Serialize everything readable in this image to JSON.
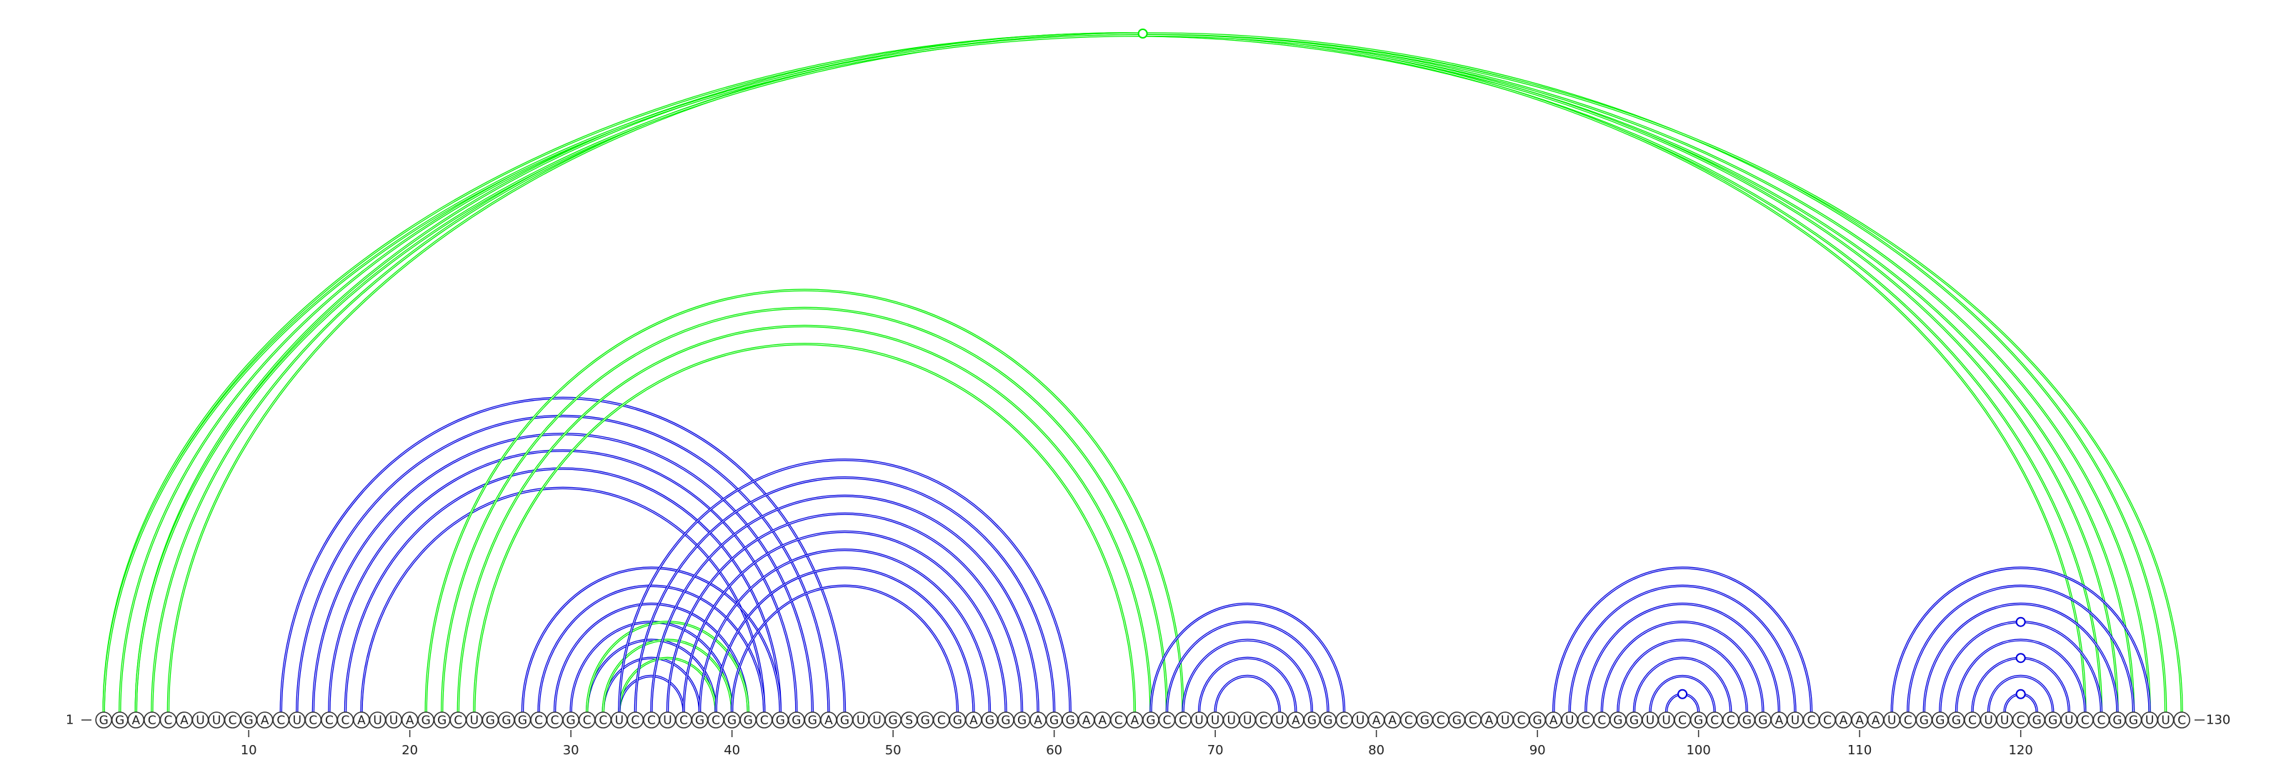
{
  "sequence": "GGACCAUUCGACUCCCAUUAGGCUGGGCCGCCUCCUCGCGGCGGGAGUUGSGCGAGGGAGGAACAGCCUUUUCUAGGCUAACGCGCAUCGAUCCGGUUCGCCGGAUCCAAAUCGGGCUUCGGUCCGGUUC",
  "start_label": "1",
  "end_label": "130",
  "ticks": [
    10,
    20,
    30,
    40,
    50,
    60,
    70,
    80,
    90,
    100,
    110,
    120
  ],
  "colors": {
    "nested": "#0000dd",
    "pseudoknot": "#00ee00"
  },
  "helices": [
    {
      "color": "pseudoknot",
      "pairs": [
        [
          1,
          128
        ],
        [
          2,
          127
        ],
        [
          3,
          126
        ],
        [
          4,
          125
        ],
        [
          5,
          124
        ]
      ]
    },
    {
      "color": "pseudoknot",
      "pairs": [
        [
          3,
          129
        ],
        [
          1,
          130
        ]
      ]
    },
    {
      "color": "nested",
      "pairs": [
        [
          12,
          47
        ],
        [
          13,
          46
        ],
        [
          14,
          45
        ],
        [
          15,
          44
        ],
        [
          16,
          43
        ],
        [
          17,
          42
        ]
      ]
    },
    {
      "color": "pseudoknot",
      "pairs": [
        [
          21,
          68
        ],
        [
          22,
          67
        ],
        [
          23,
          66
        ],
        [
          24,
          65
        ]
      ]
    },
    {
      "color": "nested",
      "pairs": [
        [
          27,
          43
        ],
        [
          28,
          42
        ],
        [
          29,
          41
        ],
        [
          30,
          40
        ],
        [
          31,
          39
        ],
        [
          32,
          38
        ],
        [
          33,
          37
        ]
      ]
    },
    {
      "color": "pseudoknot",
      "pairs": [
        [
          31,
          41
        ],
        [
          32,
          40
        ],
        [
          33,
          39
        ]
      ]
    },
    {
      "color": "nested",
      "pairs": [
        [
          33,
          61
        ],
        [
          34,
          60
        ],
        [
          35,
          59
        ],
        [
          36,
          58
        ],
        [
          37,
          57
        ],
        [
          38,
          56
        ],
        [
          39,
          55
        ],
        [
          40,
          54
        ]
      ]
    },
    {
      "color": "nested",
      "pairs": [
        [
          66,
          78
        ],
        [
          67,
          77
        ],
        [
          68,
          76
        ],
        [
          69,
          75
        ],
        [
          70,
          74
        ]
      ]
    },
    {
      "color": "nested",
      "pairs": [
        [
          91,
          107
        ],
        [
          92,
          106
        ],
        [
          93,
          105
        ],
        [
          94,
          104
        ],
        [
          95,
          103
        ],
        [
          96,
          102
        ],
        [
          97,
          101
        ],
        [
          98,
          100
        ]
      ]
    },
    {
      "color": "nested",
      "pairs": [
        [
          112,
          128
        ],
        [
          113,
          127
        ],
        [
          114,
          126
        ],
        [
          115,
          125
        ],
        [
          116,
          124
        ],
        [
          117,
          123
        ],
        [
          118,
          122
        ],
        [
          119,
          121
        ]
      ]
    }
  ],
  "markers": [
    {
      "color": "pseudoknot",
      "at": [
        1,
        130
      ]
    },
    {
      "color": "nested",
      "at": [
        98,
        100
      ]
    },
    {
      "color": "nested",
      "at": [
        119,
        121
      ]
    },
    {
      "color": "nested",
      "at": [
        117,
        123
      ]
    },
    {
      "color": "nested",
      "at": [
        115,
        125
      ]
    }
  ]
}
